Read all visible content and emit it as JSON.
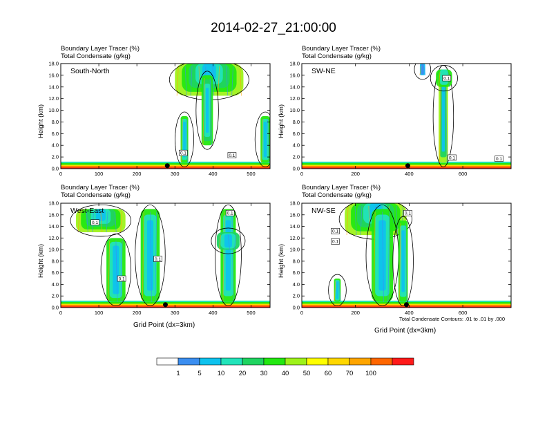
{
  "title": "2014-02-27_21:00:00",
  "colors": {
    "levels": [
      "#ffffff",
      "#3b8ef0",
      "#0ec2ee",
      "#22e4ba",
      "#1fd460",
      "#23e811",
      "#9ef21a",
      "#ffff00",
      "#ffd700",
      "#ffa500",
      "#ff6600",
      "#ff1a1a"
    ],
    "contour": "#000000",
    "marker": "#000000"
  },
  "colorbar": {
    "labels": [
      "1",
      "5",
      "10",
      "20",
      "30",
      "40",
      "50",
      "60",
      "70",
      "100"
    ]
  },
  "contour_note": "Total Condensate Contours: .01 to .01 by .000",
  "chart_data": [
    {
      "type": "heatmap",
      "panel_label": "South-North",
      "header": [
        "Boundary Layer Tracer   (%)",
        "Total Condensate   (g/kg)"
      ],
      "ylabel": "Height (km)",
      "xlabel": "",
      "ylim": [
        0,
        18
      ],
      "xlim": [
        0,
        550
      ],
      "x_ticks": [
        0,
        100,
        200,
        300,
        400,
        500
      ],
      "y_ticks": [
        "0.0",
        "2.0",
        "4.0",
        "6.0",
        "8.0",
        "10.0",
        "12.0",
        "14.0",
        "16.0",
        "18.0"
      ],
      "marker_x": 280,
      "boundary_layer_top_km": 1.2,
      "features": [
        {
          "kind": "anvil",
          "x": [
            300,
            480
          ],
          "y": [
            12.5,
            18
          ]
        },
        {
          "kind": "updraft",
          "x": [
            370,
            400
          ],
          "y": [
            4,
            16
          ]
        },
        {
          "kind": "column",
          "x": [
            315,
            335
          ],
          "y": [
            1,
            9
          ]
        },
        {
          "kind": "column",
          "x": [
            525,
            550
          ],
          "y": [
            1,
            9
          ]
        }
      ],
      "contour_labels": [
        {
          "text": "0.1",
          "x": 322,
          "y": 2.7
        },
        {
          "text": "0.1",
          "x": 450,
          "y": 2.3
        }
      ]
    },
    {
      "type": "heatmap",
      "panel_label": "SW-NE",
      "header": [
        "Boundary Layer Tracer   (%)",
        "Total Condensate   (g/kg)"
      ],
      "ylabel": "Height (km)",
      "xlabel": "",
      "ylim": [
        0,
        18
      ],
      "xlim": [
        0,
        780
      ],
      "x_ticks": [
        0,
        200,
        400,
        600
      ],
      "y_ticks": [
        "0.0",
        "2.0",
        "4.0",
        "6.0",
        "8.0",
        "10.0",
        "12.0",
        "14.0",
        "16.0",
        "18.0"
      ],
      "marker_x": 395,
      "boundary_layer_top_km": 1.2,
      "features": [
        {
          "kind": "tower",
          "x": [
            510,
            545
          ],
          "y": [
            1,
            17
          ]
        },
        {
          "kind": "cap",
          "x": [
            500,
            560
          ],
          "y": [
            14,
            17
          ]
        },
        {
          "kind": "puff",
          "x": [
            440,
            460
          ],
          "y": [
            16,
            18
          ]
        }
      ],
      "contour_labels": [
        {
          "text": "0.1",
          "x": 540,
          "y": 15.5
        },
        {
          "text": "0.1",
          "x": 560,
          "y": 1.9
        },
        {
          "text": "0.1",
          "x": 735,
          "y": 1.7
        }
      ]
    },
    {
      "type": "heatmap",
      "panel_label": "West-East",
      "header": [
        "Boundary Layer Tracer   (%)",
        "Total Condensate   (g/kg)"
      ],
      "ylabel": "Height (km)",
      "xlabel": "Grid Point (dx=3km)",
      "ylim": [
        0,
        18
      ],
      "xlim": [
        0,
        550
      ],
      "x_ticks": [
        0,
        100,
        200,
        300,
        400,
        500
      ],
      "y_ticks": [
        "0.0",
        "2.0",
        "4.0",
        "6.0",
        "8.0",
        "10.0",
        "12.0",
        "14.0",
        "16.0",
        "18.0"
      ],
      "marker_x": 275,
      "boundary_layer_top_km": 1.2,
      "features": [
        {
          "kind": "anvil",
          "x": [
            40,
            170
          ],
          "y": [
            13,
            17
          ]
        },
        {
          "kind": "column",
          "x": [
            120,
            170
          ],
          "y": [
            1,
            12
          ]
        },
        {
          "kind": "column",
          "x": [
            210,
            260
          ],
          "y": [
            1,
            17
          ]
        },
        {
          "kind": "column",
          "x": [
            420,
            460
          ],
          "y": [
            1,
            17
          ]
        },
        {
          "kind": "cloud",
          "x": [
            410,
            470
          ],
          "y": [
            10,
            13
          ]
        }
      ],
      "contour_labels": [
        {
          "text": "0.1",
          "x": 90,
          "y": 14.7
        },
        {
          "text": "0.1",
          "x": 255,
          "y": 8.4
        },
        {
          "text": "0.1",
          "x": 160,
          "y": 5.0
        },
        {
          "text": "0.1",
          "x": 445,
          "y": 16.3
        }
      ]
    },
    {
      "type": "heatmap",
      "panel_label": "NW-SE",
      "header": [
        "Boundary Layer Tracer   (%)",
        "Total Condensate   (g/kg)"
      ],
      "ylabel": "Height (km)",
      "xlabel": "Grid Point (dx=3km)",
      "ylim": [
        0,
        18
      ],
      "xlim": [
        0,
        780
      ],
      "x_ticks": [
        0,
        200,
        400,
        600
      ],
      "y_ticks": [
        "0.0",
        "2.0",
        "4.0",
        "6.0",
        "8.0",
        "10.0",
        "12.0",
        "14.0",
        "16.0",
        "18.0"
      ],
      "marker_x": 390,
      "boundary_layer_top_km": 1.2,
      "features": [
        {
          "kind": "anvil",
          "x": [
            160,
            390
          ],
          "y": [
            12.5,
            18
          ]
        },
        {
          "kind": "column",
          "x": [
            260,
            340
          ],
          "y": [
            1,
            17
          ]
        },
        {
          "kind": "column",
          "x": [
            360,
            395
          ],
          "y": [
            1,
            15
          ]
        },
        {
          "kind": "column",
          "x": [
            120,
            145
          ],
          "y": [
            1,
            5
          ]
        }
      ],
      "contour_labels": [
        {
          "text": "0.1",
          "x": 125,
          "y": 13.2
        },
        {
          "text": "0.1",
          "x": 125,
          "y": 11.4
        },
        {
          "text": "0.1",
          "x": 395,
          "y": 16.3
        }
      ]
    }
  ]
}
